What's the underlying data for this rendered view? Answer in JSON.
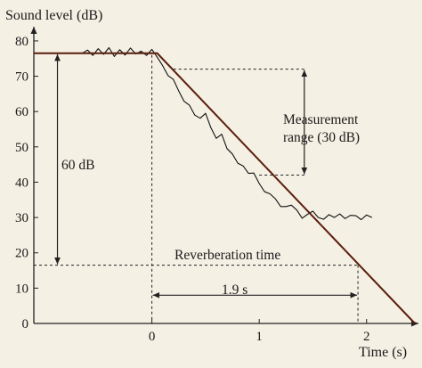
{
  "chart_data": {
    "type": "line",
    "ylabel": "Sound level (dB)",
    "xlabel": "Time (s)",
    "xlim": [
      -1.1,
      2.5
    ],
    "ylim": [
      0,
      82
    ],
    "xticks": [
      0,
      1,
      2
    ],
    "yticks": [
      0,
      10,
      20,
      30,
      40,
      50,
      60,
      70,
      80
    ],
    "grid": false,
    "colors": {
      "background": "#f5f0e4",
      "decay_line": "#5a1e0c",
      "measured": "#111111",
      "annotation": "#222222"
    },
    "series": [
      {
        "role": "ideal_decay",
        "x": [
          -1.1,
          0.0,
          0.05,
          2.45
        ],
        "y": [
          76.5,
          76.5,
          76.5,
          0
        ]
      },
      {
        "role": "measured_signal",
        "x": [
          -0.65,
          -0.6,
          -0.55,
          -0.5,
          -0.45,
          -0.4,
          -0.35,
          -0.3,
          -0.25,
          -0.2,
          -0.15,
          -0.1,
          -0.05,
          0.0,
          0.05,
          0.1,
          0.15,
          0.2,
          0.25,
          0.3,
          0.35,
          0.4,
          0.45,
          0.5,
          0.55,
          0.6,
          0.65,
          0.7,
          0.75,
          0.8,
          0.85,
          0.9,
          0.95,
          1.0,
          1.05,
          1.1,
          1.15,
          1.2,
          1.25,
          1.3,
          1.35,
          1.4,
          1.45,
          1.5,
          1.55,
          1.6,
          1.65,
          1.7,
          1.75,
          1.8,
          1.85,
          1.9,
          1.95,
          2.0,
          2.05
        ],
        "y": [
          76.5,
          77.4,
          75.9,
          77.8,
          76.2,
          78.1,
          75.6,
          77.5,
          76.0,
          78.0,
          76.3,
          77.1,
          75.9,
          77.6,
          75.4,
          73.0,
          70.2,
          69.1,
          65.8,
          62.9,
          61.8,
          59.0,
          58.1,
          59.5,
          55.4,
          52.4,
          53.6,
          49.5,
          48.0,
          45.4,
          44.6,
          42.5,
          42.6,
          39.6,
          37.3,
          36.7,
          35.3,
          33.1,
          33.1,
          33.5,
          32.1,
          29.8,
          30.9,
          31.8,
          30.0,
          29.5,
          30.8,
          30.0,
          31.0,
          29.7,
          30.6,
          30.5,
          29.4,
          30.7,
          30.0
        ]
      }
    ],
    "annotations": {
      "sixty_db": {
        "text": "60 dB",
        "from_y": 76.5,
        "to_y": 16.5,
        "x": -0.88
      },
      "measurement_range": {
        "text_line1": "Measurement",
        "text_line2": "range (30 dB)",
        "upper_y": 72,
        "lower_y": 42,
        "x": 1.42
      },
      "reverberation_time": {
        "text": "Reverberation time",
        "y": 16.5,
        "x_end": 1.92
      },
      "interval": {
        "text": "1.9 s",
        "y": 8,
        "from_x": 0,
        "to_x": 1.92
      }
    }
  }
}
